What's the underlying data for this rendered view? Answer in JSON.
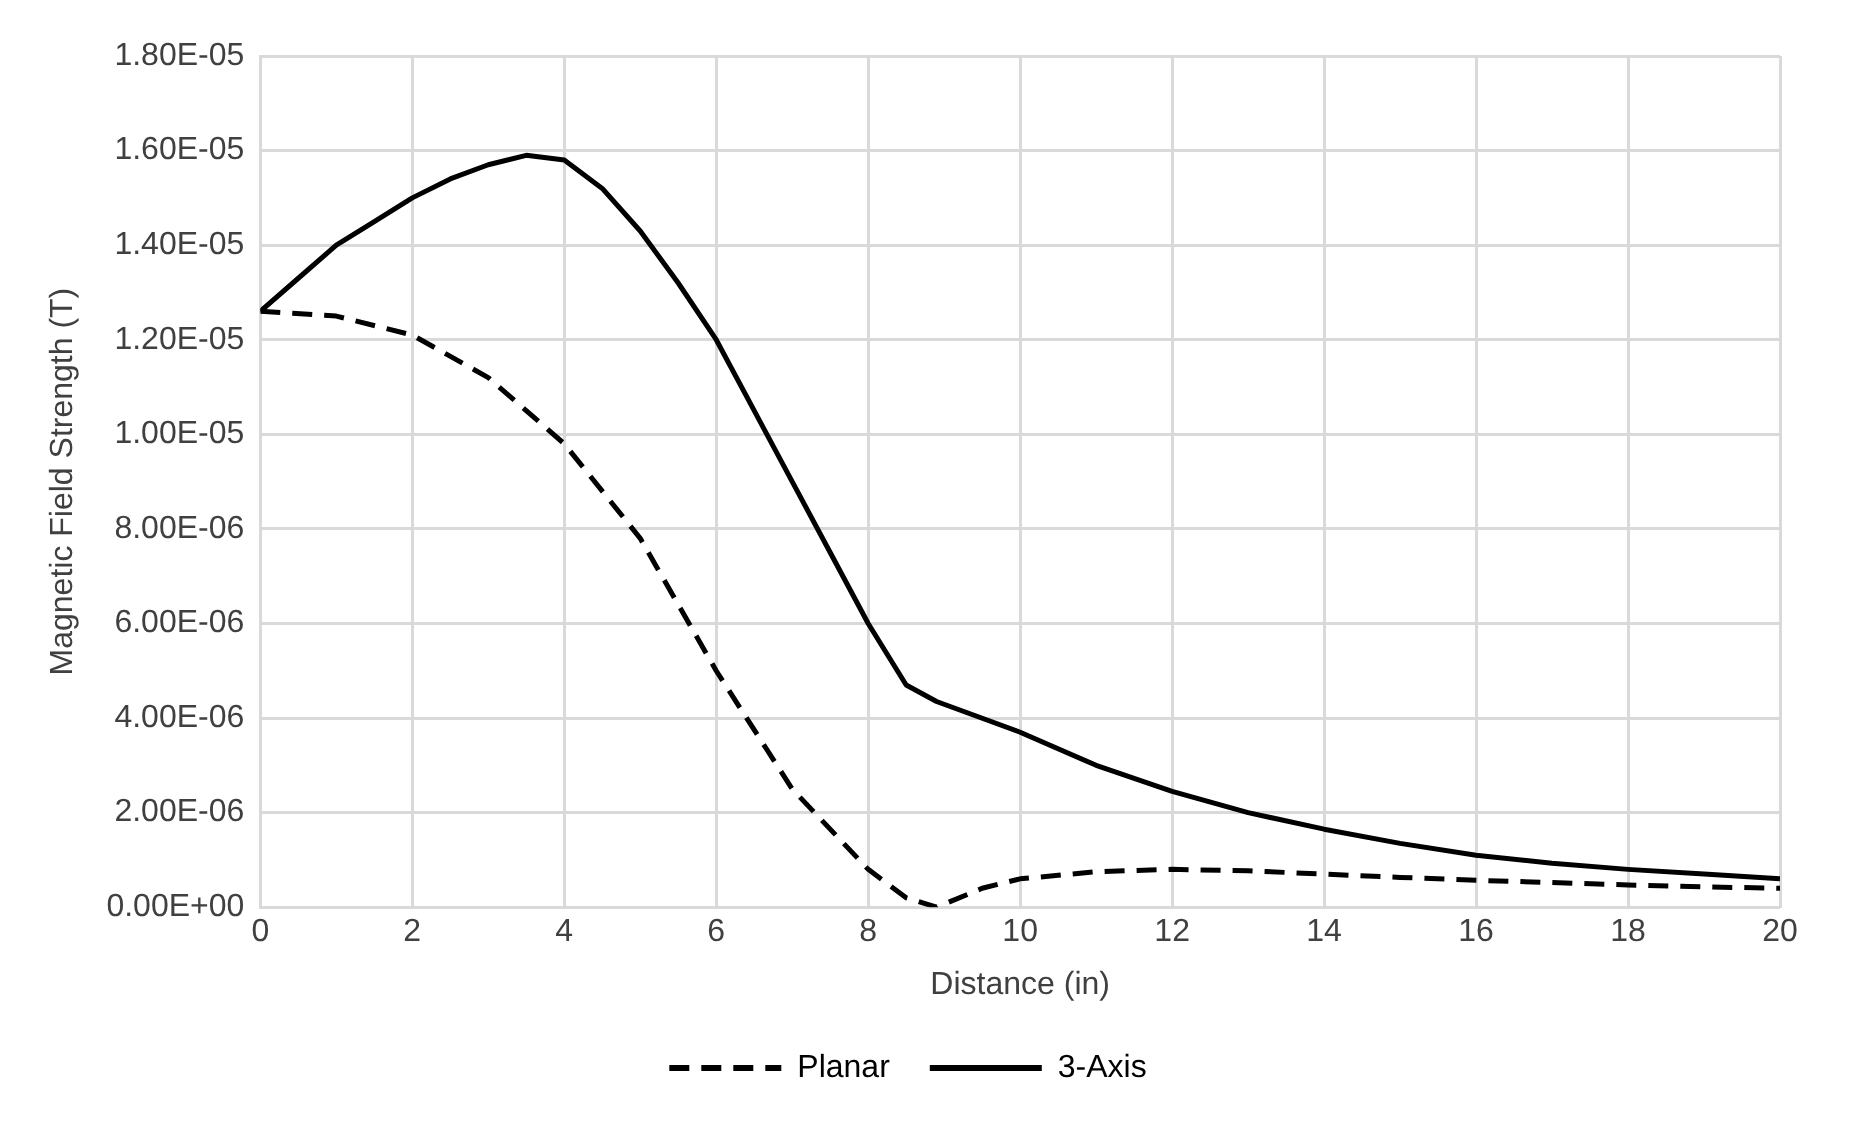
{
  "chart_data": {
    "type": "line",
    "xlabel": "Distance (in)",
    "ylabel": "Magnetic Field Strength (T)",
    "xlim": [
      0,
      20
    ],
    "xticks": [
      0,
      2,
      4,
      6,
      8,
      10,
      12,
      14,
      16,
      18,
      20
    ],
    "ylim": [
      0,
      1.8e-05
    ],
    "yticks": [
      {
        "value": 0,
        "label": "0.00E+00"
      },
      {
        "value": 2e-06,
        "label": "2.00E-06"
      },
      {
        "value": 4e-06,
        "label": "4.00E-06"
      },
      {
        "value": 6e-06,
        "label": "6.00E-06"
      },
      {
        "value": 8e-06,
        "label": "8.00E-06"
      },
      {
        "value": 1e-05,
        "label": "1.00E-05"
      },
      {
        "value": 1.2e-05,
        "label": "1.20E-05"
      },
      {
        "value": 1.4e-05,
        "label": "1.40E-05"
      },
      {
        "value": 1.6e-05,
        "label": "1.60E-05"
      },
      {
        "value": 1.8e-05,
        "label": "1.80E-05"
      }
    ],
    "grid": true,
    "legend": "bottom",
    "marker": "none",
    "series": [
      {
        "name": "Planar",
        "color": "#000000",
        "line_style": "dashed",
        "x": [
          0,
          1,
          2,
          3,
          4,
          5,
          6,
          7,
          8,
          8.5,
          8.9,
          9.5,
          10,
          11,
          12,
          13,
          14,
          15,
          16,
          17,
          18,
          19,
          20
        ],
        "values": [
          1.26e-05,
          1.25e-05,
          1.21e-05,
          1.12e-05,
          9.8e-06,
          7.8e-06,
          5e-06,
          2.5e-06,
          8e-07,
          2e-07,
          0,
          4e-07,
          6e-07,
          7.5e-07,
          8e-07,
          7.7e-07,
          7e-07,
          6.3e-07,
          5.7e-07,
          5.2e-07,
          4.7e-07,
          4.3e-07,
          4e-07
        ]
      },
      {
        "name": "3-Axis",
        "color": "#000000",
        "line_style": "solid",
        "x": [
          0,
          0.5,
          1,
          1.5,
          2,
          2.5,
          3,
          3.5,
          4,
          4.5,
          5,
          5.5,
          6,
          6.5,
          7,
          7.5,
          8,
          8.5,
          8.9,
          10,
          11,
          12,
          13,
          14,
          15,
          16,
          17,
          18,
          19,
          20
        ],
        "values": [
          1.26e-05,
          1.33e-05,
          1.4e-05,
          1.45e-05,
          1.5e-05,
          1.54e-05,
          1.57e-05,
          1.59e-05,
          1.58e-05,
          1.52e-05,
          1.43e-05,
          1.32e-05,
          1.2e-05,
          1.05e-05,
          9e-06,
          7.5e-06,
          6e-06,
          4.7e-06,
          4.35e-06,
          3.7e-06,
          3e-06,
          2.45e-06,
          2e-06,
          1.65e-06,
          1.35e-06,
          1.1e-06,
          9.3e-07,
          8e-07,
          7e-07,
          6e-07
        ]
      }
    ]
  }
}
